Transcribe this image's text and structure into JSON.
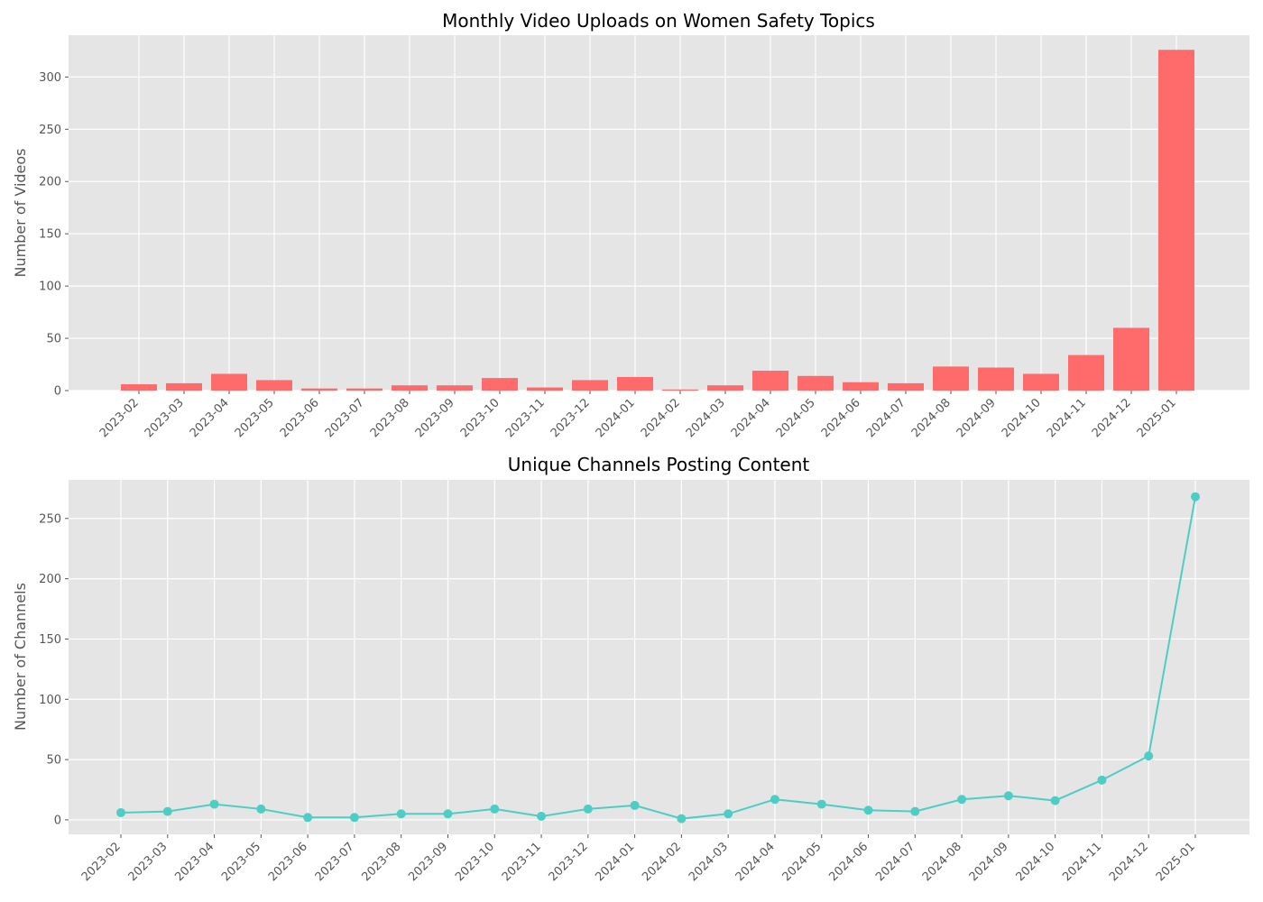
{
  "chart_data": [
    {
      "type": "bar",
      "title": "Monthly Video Uploads on Women Safety Topics",
      "xlabel": "",
      "ylabel": "Number of Videos",
      "ylim": [
        0,
        340
      ],
      "yticks": [
        0,
        50,
        100,
        150,
        200,
        250,
        300
      ],
      "grid": true,
      "color": "#ff6b6b",
      "categories": [
        "2023-02",
        "2023-03",
        "2023-04",
        "2023-05",
        "2023-06",
        "2023-07",
        "2023-08",
        "2023-09",
        "2023-10",
        "2023-11",
        "2023-12",
        "2024-01",
        "2024-02",
        "2024-03",
        "2024-04",
        "2024-05",
        "2024-06",
        "2024-07",
        "2024-08",
        "2024-09",
        "2024-10",
        "2024-11",
        "2024-12",
        "2025-01"
      ],
      "values": [
        6,
        7,
        16,
        10,
        2,
        2,
        5,
        5,
        12,
        3,
        10,
        13,
        1,
        5,
        19,
        14,
        8,
        7,
        23,
        22,
        16,
        34,
        60,
        326
      ]
    },
    {
      "type": "line",
      "title": "Unique Channels Posting Content",
      "xlabel": "",
      "ylabel": "Number of Channels",
      "ylim": [
        -12,
        282
      ],
      "yticks": [
        0,
        50,
        100,
        150,
        200,
        250
      ],
      "grid": true,
      "color": "#4ecdc4",
      "x": [
        "2023-02",
        "2023-03",
        "2023-04",
        "2023-05",
        "2023-06",
        "2023-07",
        "2023-08",
        "2023-09",
        "2023-10",
        "2023-11",
        "2023-12",
        "2024-01",
        "2024-02",
        "2024-03",
        "2024-04",
        "2024-05",
        "2024-06",
        "2024-07",
        "2024-08",
        "2024-09",
        "2024-10",
        "2024-11",
        "2024-12",
        "2025-01"
      ],
      "values": [
        6,
        7,
        13,
        9,
        2,
        2,
        5,
        5,
        9,
        3,
        9,
        12,
        1,
        5,
        17,
        13,
        8,
        7,
        17,
        20,
        16,
        33,
        53,
        268
      ]
    }
  ]
}
